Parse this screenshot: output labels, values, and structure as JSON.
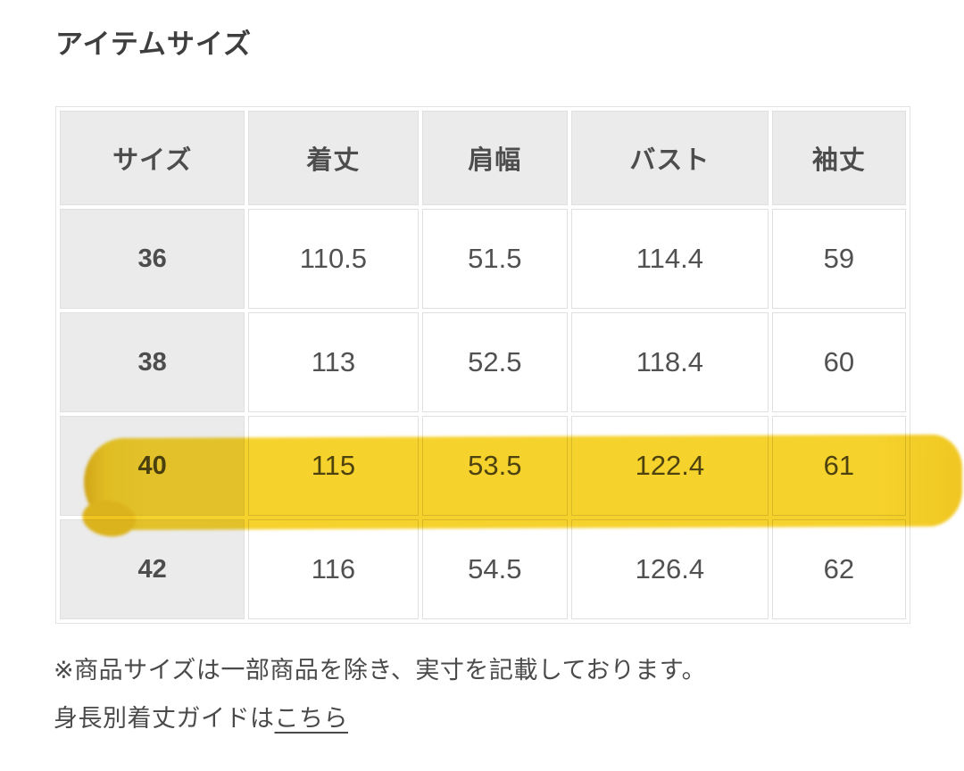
{
  "page": {
    "title": "アイテムサイズ"
  },
  "table": {
    "headers": [
      "サイズ",
      "着丈",
      "肩幅",
      "バスト",
      "袖丈"
    ],
    "rows": [
      {
        "size": "36",
        "values": [
          "110.5",
          "51.5",
          "114.4",
          "59"
        ],
        "highlighted": false
      },
      {
        "size": "38",
        "values": [
          "113",
          "52.5",
          "118.4",
          "60"
        ],
        "highlighted": false
      },
      {
        "size": "40",
        "values": [
          "115",
          "53.5",
          "122.4",
          "61"
        ],
        "highlighted": true
      },
      {
        "size": "42",
        "values": [
          "116",
          "54.5",
          "126.4",
          "62"
        ],
        "highlighted": false
      }
    ],
    "highlighted_row": "40",
    "highlight_color": "#f6d22d",
    "header_background": "#ebebeb",
    "border_color": "#e0e0e0",
    "text_color": "#4d4d4d"
  },
  "notes": {
    "disclaimer": "※商品サイズは一部商品を除き、実寸を記載しております。",
    "guide_text": "身長別着丈ガイドは",
    "guide_link_label": "こちら"
  }
}
